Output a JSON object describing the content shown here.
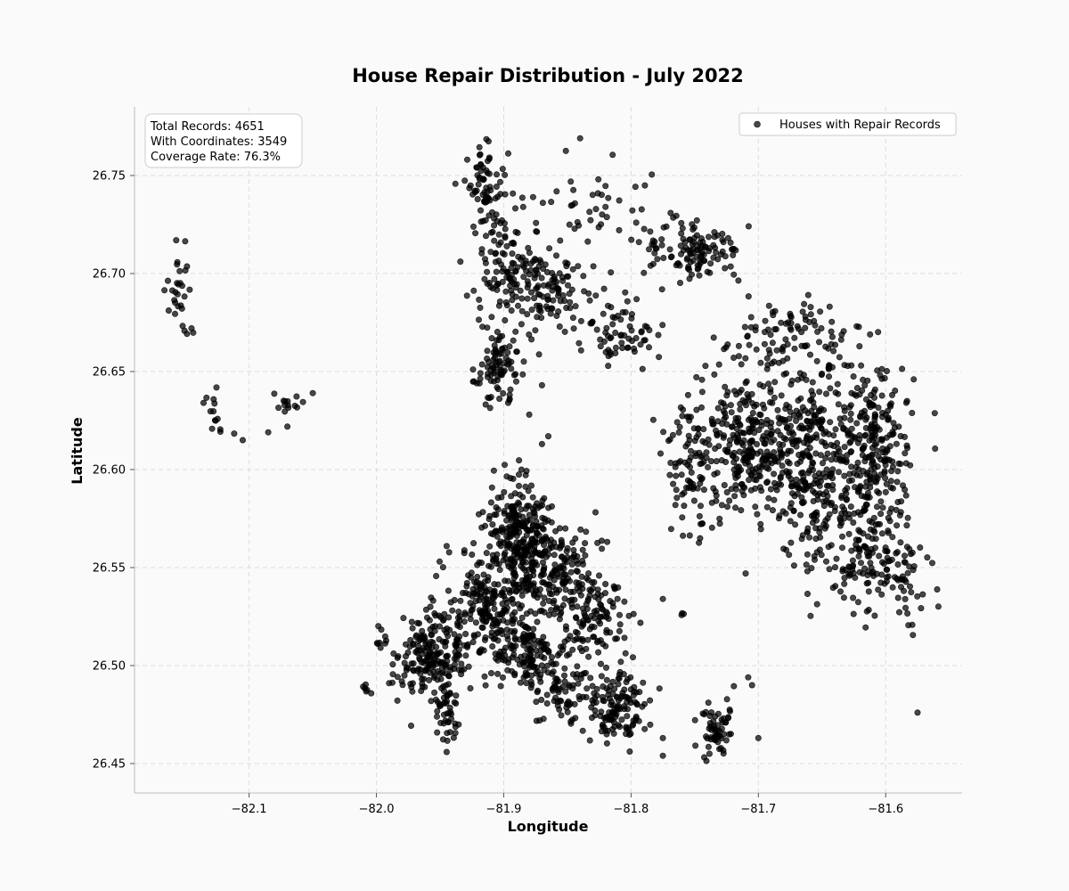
{
  "chart_data": {
    "type": "scatter",
    "title": "House Repair Distribution - July 2022",
    "xlabel": "Longitude",
    "ylabel": "Latitude",
    "xlim": [
      -82.19,
      -81.54
    ],
    "ylim": [
      26.435,
      26.785
    ],
    "xticks": [
      -82.1,
      -82.0,
      -81.9,
      -81.8,
      -81.7,
      -81.6
    ],
    "xtick_labels": [
      "−82.1",
      "−82.0",
      "−81.9",
      "−81.8",
      "−81.7",
      "−81.6"
    ],
    "yticks": [
      26.45,
      26.5,
      26.55,
      26.6,
      26.65,
      26.7,
      26.75
    ],
    "ytick_labels": [
      "26.45",
      "26.50",
      "26.55",
      "26.60",
      "26.65",
      "26.70",
      "26.75"
    ],
    "grid": true,
    "legend": {
      "position": "top-right",
      "entries": [
        "Houses with Repair Records"
      ]
    },
    "stats_box": {
      "position": "top-left",
      "lines": [
        "Total Records: 4651",
        "With Coordinates: 3549",
        "Coverage Rate: 76.3%"
      ]
    },
    "marker_color": "#000000",
    "series": [
      {
        "name": "Houses with Repair Records",
        "count": 3549,
        "clusters": [
          {
            "center": [
              -82.155,
              26.69
            ],
            "spread": [
              0.007,
              0.013
            ],
            "n": 30
          },
          {
            "center": [
              -82.125,
              26.63
            ],
            "spread": [
              0.006,
              0.009
            ],
            "n": 14
          },
          {
            "center": [
              -82.07,
              26.633
            ],
            "spread": [
              0.008,
              0.005
            ],
            "n": 14
          },
          {
            "center": [
              -82.008,
              26.488
            ],
            "spread": [
              0.002,
              0.003
            ],
            "n": 6
          },
          {
            "center": [
              -81.995,
              26.515
            ],
            "spread": [
              0.003,
              0.005
            ],
            "n": 9
          },
          {
            "center": [
              -81.915,
              26.745
            ],
            "spread": [
              0.01,
              0.015
            ],
            "n": 70
          },
          {
            "center": [
              -81.898,
              26.705
            ],
            "spread": [
              0.015,
              0.017
            ],
            "n": 110
          },
          {
            "center": [
              -81.905,
              26.652
            ],
            "spread": [
              0.01,
              0.013
            ],
            "n": 90
          },
          {
            "center": [
              -81.862,
              26.692
            ],
            "spread": [
              0.016,
              0.014
            ],
            "n": 100
          },
          {
            "center": [
              -81.835,
              26.735
            ],
            "spread": [
              0.025,
              0.013
            ],
            "n": 35
          },
          {
            "center": [
              -81.81,
              26.67
            ],
            "spread": [
              0.015,
              0.01
            ],
            "n": 70
          },
          {
            "center": [
              -81.745,
              26.71
            ],
            "spread": [
              0.018,
              0.009
            ],
            "n": 100
          },
          {
            "center": [
              -81.79,
              26.72
            ],
            "spread": [
              0.02,
              0.02
            ],
            "n": 30
          },
          {
            "center": [
              -81.752,
              26.6
            ],
            "spread": [
              0.012,
              0.022
            ],
            "n": 100
          },
          {
            "center": [
              -81.71,
              26.615
            ],
            "spread": [
              0.02,
              0.02
            ],
            "n": 230
          },
          {
            "center": [
              -81.66,
              26.605
            ],
            "spread": [
              0.022,
              0.028
            ],
            "n": 330
          },
          {
            "center": [
              -81.61,
              26.61
            ],
            "spread": [
              0.017,
              0.025
            ],
            "n": 240
          },
          {
            "center": [
              -81.675,
              26.665
            ],
            "spread": [
              0.028,
              0.013
            ],
            "n": 100
          },
          {
            "center": [
              -81.62,
              26.56
            ],
            "spread": [
              0.024,
              0.017
            ],
            "n": 140
          },
          {
            "center": [
              -81.585,
              26.54
            ],
            "spread": [
              0.012,
              0.015
            ],
            "n": 45
          },
          {
            "center": [
              -81.89,
              26.57
            ],
            "spread": [
              0.015,
              0.014
            ],
            "n": 210
          },
          {
            "center": [
              -81.865,
              26.548
            ],
            "spread": [
              0.02,
              0.013
            ],
            "n": 190
          },
          {
            "center": [
              -81.91,
              26.53
            ],
            "spread": [
              0.022,
              0.016
            ],
            "n": 230
          },
          {
            "center": [
              -81.955,
              26.505
            ],
            "spread": [
              0.017,
              0.012
            ],
            "n": 190
          },
          {
            "center": [
              -81.945,
              26.475
            ],
            "spread": [
              0.006,
              0.009
            ],
            "n": 45
          },
          {
            "center": [
              -81.88,
              26.505
            ],
            "spread": [
              0.018,
              0.01
            ],
            "n": 130
          },
          {
            "center": [
              -81.83,
              26.525
            ],
            "spread": [
              0.017,
              0.018
            ],
            "n": 130
          },
          {
            "center": [
              -81.812,
              26.48
            ],
            "spread": [
              0.014,
              0.011
            ],
            "n": 130
          },
          {
            "center": [
              -81.855,
              26.485
            ],
            "spread": [
              0.012,
              0.01
            ],
            "n": 60
          },
          {
            "center": [
              -81.732,
              26.468
            ],
            "spread": [
              0.009,
              0.008
            ],
            "n": 60
          },
          {
            "center": [
              -81.76,
              26.526
            ],
            "spread": [
              0.001,
              0.001
            ],
            "n": 3
          }
        ],
        "outliers": [
          [
            -82.105,
            26.615
          ],
          [
            -82.085,
            26.619
          ],
          [
            -82.05,
            26.639
          ],
          [
            -81.99,
            26.491
          ],
          [
            -81.88,
            26.628
          ],
          [
            -81.87,
            26.643
          ],
          [
            -81.865,
            26.617
          ],
          [
            -81.87,
            26.613
          ],
          [
            -81.84,
            26.769
          ],
          [
            -81.775,
            26.534
          ],
          [
            -81.71,
            26.547
          ],
          [
            -81.705,
            26.49
          ],
          [
            -81.708,
            26.494
          ],
          [
            -81.7,
            26.463
          ],
          [
            -81.575,
            26.476
          ],
          [
            -81.775,
            26.463
          ],
          [
            -81.775,
            26.454
          ]
        ]
      }
    ]
  }
}
